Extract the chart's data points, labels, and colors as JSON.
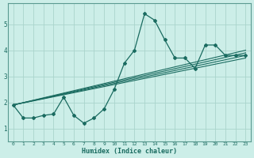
{
  "xlabel": "Humidex (Indice chaleur)",
  "bg_color": "#cceee8",
  "grid_color": "#aad4cc",
  "line_color": "#1a6b60",
  "spine_color": "#5a9a90",
  "xlim": [
    -0.5,
    23.5
  ],
  "ylim": [
    0.5,
    5.8
  ],
  "xticks": [
    0,
    1,
    2,
    3,
    4,
    5,
    6,
    7,
    8,
    9,
    10,
    11,
    12,
    13,
    14,
    15,
    16,
    17,
    18,
    19,
    20,
    21,
    22,
    23
  ],
  "yticks": [
    1,
    2,
    3,
    4,
    5
  ],
  "line1_x": [
    0,
    1,
    2,
    3,
    4,
    5,
    6,
    7,
    8,
    9,
    10,
    11,
    12,
    13,
    14,
    15,
    16,
    17,
    18,
    19,
    20,
    21,
    22,
    23
  ],
  "line1_y": [
    1.9,
    1.4,
    1.4,
    1.5,
    1.55,
    2.2,
    1.5,
    1.2,
    1.4,
    1.75,
    2.5,
    3.5,
    4.0,
    5.4,
    5.15,
    4.4,
    3.7,
    3.7,
    3.3,
    4.2,
    4.2,
    3.8,
    3.8,
    3.8
  ],
  "trend_lines": [
    {
      "x": [
        0,
        23
      ],
      "y": [
        1.9,
        3.7
      ]
    },
    {
      "x": [
        0,
        23
      ],
      "y": [
        1.9,
        3.8
      ]
    },
    {
      "x": [
        0,
        23
      ],
      "y": [
        1.9,
        3.9
      ]
    },
    {
      "x": [
        0,
        23
      ],
      "y": [
        1.9,
        4.0
      ]
    }
  ]
}
